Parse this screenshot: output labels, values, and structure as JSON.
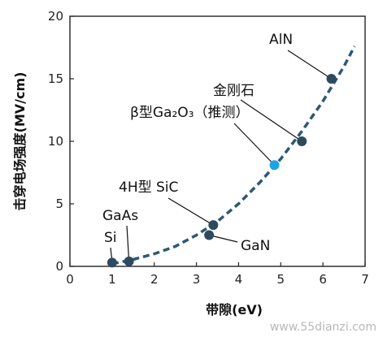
{
  "chart_data": {
    "type": "scatter",
    "xlabel": "带隙(eV)",
    "ylabel": "击穿电场强度(MV/cm)",
    "xlim": [
      0,
      7
    ],
    "ylim": [
      0,
      20
    ],
    "xticks": [
      "0",
      "1",
      "2",
      "3",
      "4",
      "5",
      "6",
      "7"
    ],
    "yticks": [
      "0",
      "5",
      "10",
      "15",
      "20"
    ],
    "grid": false,
    "points": [
      {
        "label": "Si",
        "x": 1.0,
        "y": 0.3,
        "color": "#2e4a5f"
      },
      {
        "label": "GaAs",
        "x": 1.4,
        "y": 0.4,
        "color": "#2e4a5f"
      },
      {
        "label": "4H型 SiC",
        "x": 3.4,
        "y": 3.3,
        "color": "#2e4a5f"
      },
      {
        "label": "GaN",
        "x": 3.3,
        "y": 2.5,
        "color": "#2e4a5f"
      },
      {
        "label": "β型Ga₂O₃（推测）",
        "x": 4.85,
        "y": 8.1,
        "color": "#1fa3e6"
      },
      {
        "label": "金刚石",
        "x": 5.5,
        "y": 10.0,
        "color": "#2e4a5f"
      },
      {
        "label": "AlN",
        "x": 6.2,
        "y": 15.0,
        "color": "#2e4a5f"
      }
    ],
    "trend_line": {
      "style": "dashed",
      "color": "#2e5873",
      "x": [
        1.0,
        1.5,
        2.0,
        2.5,
        3.0,
        3.5,
        4.0,
        4.5,
        5.0,
        5.5,
        6.0,
        6.5,
        6.75
      ],
      "y": [
        0.2,
        0.55,
        1.0,
        1.6,
        2.5,
        3.6,
        5.0,
        6.7,
        8.6,
        10.8,
        13.2,
        16.0,
        17.6
      ]
    }
  },
  "watermark": "www.55dianzi.com"
}
